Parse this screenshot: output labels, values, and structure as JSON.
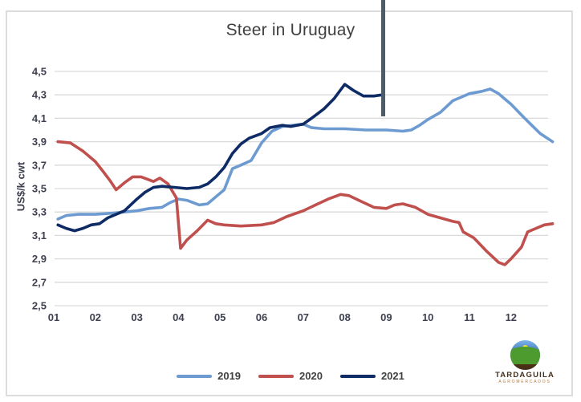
{
  "chart_data": {
    "type": "line",
    "title": "Steer in Uruguay",
    "ylabel": "US$/k cwt",
    "xlabel": "",
    "ylim": [
      2.5,
      4.5
    ],
    "grid": true,
    "legend_position": "bottom",
    "y_ticks": [
      {
        "value": 4.5,
        "label": "4,5"
      },
      {
        "value": 4.3,
        "label": "4,3"
      },
      {
        "value": 4.1,
        "label": "4,1"
      },
      {
        "value": 3.9,
        "label": "3,9"
      },
      {
        "value": 3.7,
        "label": "3,7"
      },
      {
        "value": 3.5,
        "label": "3,5"
      },
      {
        "value": 3.3,
        "label": "3,3"
      },
      {
        "value": 3.1,
        "label": "3,1"
      },
      {
        "value": 2.9,
        "label": "2,9"
      },
      {
        "value": 2.7,
        "label": "2,7"
      },
      {
        "value": 2.5,
        "label": "2,5"
      }
    ],
    "x_ticks": [
      {
        "month": 1,
        "label": "01"
      },
      {
        "month": 2,
        "label": "02"
      },
      {
        "month": 3,
        "label": "03"
      },
      {
        "month": 4,
        "label": "04"
      },
      {
        "month": 5,
        "label": "05"
      },
      {
        "month": 6,
        "label": "06"
      },
      {
        "month": 7,
        "label": "07"
      },
      {
        "month": 8,
        "label": "08"
      },
      {
        "month": 9,
        "label": "09"
      },
      {
        "month": 10,
        "label": "10"
      },
      {
        "month": 11,
        "label": "11"
      },
      {
        "month": 12,
        "label": "12"
      }
    ],
    "series": [
      {
        "name": "2019",
        "color": "#6d9bd1",
        "points": [
          [
            1.1,
            3.24
          ],
          [
            1.3,
            3.27
          ],
          [
            1.6,
            3.28
          ],
          [
            2.0,
            3.28
          ],
          [
            2.4,
            3.29
          ],
          [
            2.7,
            3.3
          ],
          [
            3.0,
            3.31
          ],
          [
            3.3,
            3.33
          ],
          [
            3.6,
            3.34
          ],
          [
            3.8,
            3.38
          ],
          [
            4.0,
            3.41
          ],
          [
            4.2,
            3.4
          ],
          [
            4.5,
            3.36
          ],
          [
            4.7,
            3.37
          ],
          [
            4.9,
            3.43
          ],
          [
            5.1,
            3.49
          ],
          [
            5.3,
            3.67
          ],
          [
            5.5,
            3.7
          ],
          [
            5.75,
            3.74
          ],
          [
            6.0,
            3.89
          ],
          [
            6.25,
            3.99
          ],
          [
            6.5,
            4.03
          ],
          [
            6.75,
            4.04
          ],
          [
            7.0,
            4.05
          ],
          [
            7.2,
            4.02
          ],
          [
            7.5,
            4.01
          ],
          [
            8.0,
            4.01
          ],
          [
            8.5,
            4.0
          ],
          [
            9.0,
            4.0
          ],
          [
            9.4,
            3.99
          ],
          [
            9.6,
            4.0
          ],
          [
            9.8,
            4.04
          ],
          [
            10.0,
            4.09
          ],
          [
            10.3,
            4.15
          ],
          [
            10.6,
            4.25
          ],
          [
            10.8,
            4.28
          ],
          [
            11.0,
            4.31
          ],
          [
            11.3,
            4.33
          ],
          [
            11.5,
            4.35
          ],
          [
            11.7,
            4.31
          ],
          [
            12.0,
            4.22
          ],
          [
            12.3,
            4.11
          ],
          [
            12.5,
            4.04
          ],
          [
            12.7,
            3.97
          ],
          [
            13.0,
            3.9
          ]
        ]
      },
      {
        "name": "2020",
        "color": "#c0504d",
        "points": [
          [
            1.1,
            3.9
          ],
          [
            1.4,
            3.89
          ],
          [
            1.7,
            3.82
          ],
          [
            2.0,
            3.73
          ],
          [
            2.2,
            3.64
          ],
          [
            2.35,
            3.57
          ],
          [
            2.5,
            3.49
          ],
          [
            2.7,
            3.55
          ],
          [
            2.9,
            3.6
          ],
          [
            3.1,
            3.6
          ],
          [
            3.4,
            3.56
          ],
          [
            3.55,
            3.59
          ],
          [
            3.75,
            3.54
          ],
          [
            3.95,
            3.42
          ],
          [
            4.05,
            2.99
          ],
          [
            4.2,
            3.06
          ],
          [
            4.45,
            3.14
          ],
          [
            4.7,
            3.23
          ],
          [
            4.9,
            3.2
          ],
          [
            5.1,
            3.19
          ],
          [
            5.5,
            3.18
          ],
          [
            6.0,
            3.19
          ],
          [
            6.3,
            3.21
          ],
          [
            6.6,
            3.26
          ],
          [
            7.0,
            3.31
          ],
          [
            7.3,
            3.36
          ],
          [
            7.6,
            3.41
          ],
          [
            7.9,
            3.45
          ],
          [
            8.1,
            3.44
          ],
          [
            8.4,
            3.39
          ],
          [
            8.7,
            3.34
          ],
          [
            9.0,
            3.33
          ],
          [
            9.2,
            3.36
          ],
          [
            9.4,
            3.37
          ],
          [
            9.7,
            3.34
          ],
          [
            10.0,
            3.28
          ],
          [
            10.3,
            3.25
          ],
          [
            10.6,
            3.22
          ],
          [
            10.75,
            3.21
          ],
          [
            10.85,
            3.13
          ],
          [
            11.1,
            3.08
          ],
          [
            11.4,
            2.97
          ],
          [
            11.7,
            2.87
          ],
          [
            11.85,
            2.85
          ],
          [
            12.0,
            2.9
          ],
          [
            12.25,
            3.0
          ],
          [
            12.4,
            3.13
          ],
          [
            12.6,
            3.16
          ],
          [
            12.8,
            3.19
          ],
          [
            13.0,
            3.2
          ]
        ]
      },
      {
        "name": "2021",
        "color": "#0e2b66",
        "points": [
          [
            1.1,
            3.19
          ],
          [
            1.3,
            3.16
          ],
          [
            1.5,
            3.14
          ],
          [
            1.7,
            3.16
          ],
          [
            1.9,
            3.19
          ],
          [
            2.1,
            3.2
          ],
          [
            2.3,
            3.25
          ],
          [
            2.5,
            3.28
          ],
          [
            2.7,
            3.31
          ],
          [
            2.85,
            3.36
          ],
          [
            3.0,
            3.41
          ],
          [
            3.2,
            3.47
          ],
          [
            3.4,
            3.51
          ],
          [
            3.6,
            3.52
          ],
          [
            3.9,
            3.51
          ],
          [
            4.2,
            3.5
          ],
          [
            4.5,
            3.51
          ],
          [
            4.7,
            3.54
          ],
          [
            4.9,
            3.6
          ],
          [
            5.1,
            3.68
          ],
          [
            5.3,
            3.8
          ],
          [
            5.5,
            3.88
          ],
          [
            5.7,
            3.93
          ],
          [
            6.0,
            3.97
          ],
          [
            6.2,
            4.02
          ],
          [
            6.5,
            4.04
          ],
          [
            6.7,
            4.03
          ],
          [
            7.0,
            4.05
          ],
          [
            7.2,
            4.1
          ],
          [
            7.5,
            4.18
          ],
          [
            7.75,
            4.27
          ],
          [
            8.0,
            4.39
          ],
          [
            8.2,
            4.34
          ],
          [
            8.45,
            4.29
          ],
          [
            8.7,
            4.29
          ],
          [
            8.9,
            4.3
          ]
        ]
      }
    ],
    "annotation_line": {
      "kind": "vertical",
      "at_month": 8.93,
      "color": "#4c5c69"
    }
  },
  "colors": {
    "grid": "#d9d9d9",
    "frame_border": "#dcdcdc",
    "title_text": "#404040",
    "tick_text": "#3f4150"
  },
  "logo": {
    "name": "TARDAGUILA",
    "subtitle": "AGROMERCADOS"
  }
}
